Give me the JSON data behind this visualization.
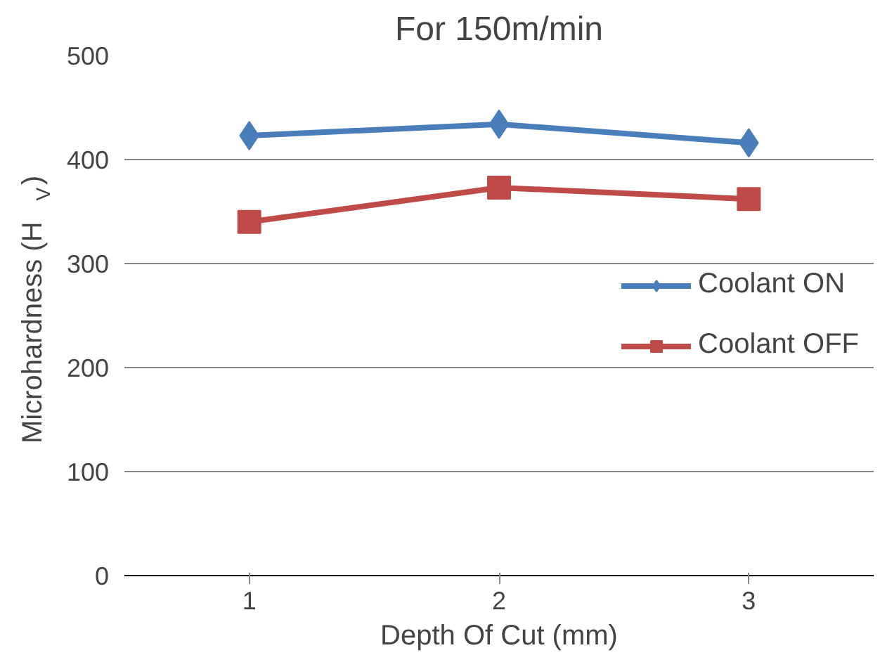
{
  "chart_data": {
    "type": "line",
    "title": "For 150m/min",
    "xlabel": "Depth Of Cut (mm)",
    "ylabel": "Microhardness (H$_{V}$)",
    "categories": [
      "1",
      "2",
      "3"
    ],
    "series": [
      {
        "name": "Coolant ON",
        "color": "#4a7ebb",
        "values": [
          423,
          434,
          416
        ],
        "marker": "diamond"
      },
      {
        "name": "Coolant OFF",
        "color": "#be4b48",
        "values": [
          340,
          373,
          362
        ],
        "marker": "square"
      }
    ],
    "ylim": [
      0,
      500
    ],
    "yticks": [
      0,
      100,
      200,
      300,
      400,
      500
    ],
    "grid": "y",
    "legend": "center right",
    "line_style": "solid"
  }
}
